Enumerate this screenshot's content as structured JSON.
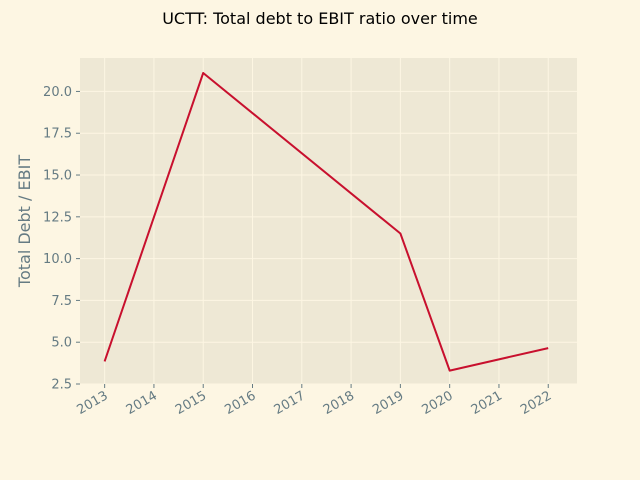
{
  "chart_data": {
    "type": "line",
    "title": "UCTT: Total debt to EBIT ratio over time",
    "xlabel": "",
    "ylabel": "Total Debt / EBIT",
    "x": [
      "2013",
      "2015",
      "2019",
      "2020",
      "2022"
    ],
    "values": [
      3.85,
      21.1,
      11.5,
      3.3,
      4.65
    ],
    "x_ticks": [
      "2013",
      "2014",
      "2015",
      "2016",
      "2017",
      "2018",
      "2019",
      "2020",
      "2021",
      "2022"
    ],
    "y_ticks": [
      "2.5",
      "5.0",
      "7.5",
      "10.0",
      "12.5",
      "15.0",
      "17.5",
      "20.0"
    ],
    "ylim": [
      2.5,
      22.0
    ],
    "xlim": [
      "2012-07",
      "2022-08"
    ],
    "grid": true,
    "legend": "none",
    "colors": {
      "line": "#c8102e",
      "plot_background": "#eee8d5",
      "page_background": "#fdf6e3",
      "grid": "#fdf6e3",
      "text": "#657b83"
    }
  }
}
